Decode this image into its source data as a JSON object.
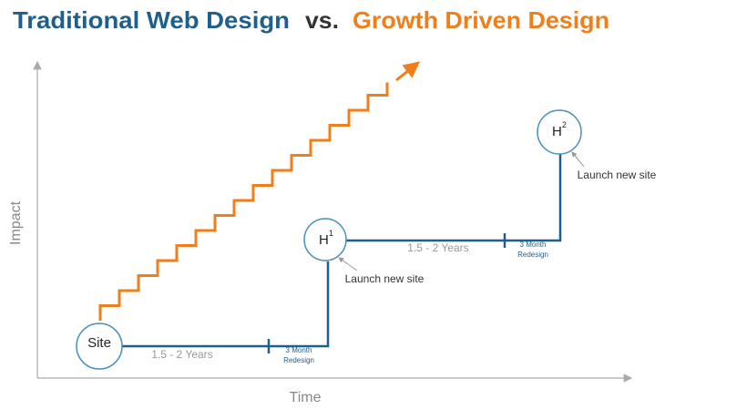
{
  "title": {
    "left": "Traditional Web Design",
    "vs": "vs.",
    "right": "Growth Driven Design"
  },
  "axes": {
    "x": "Time",
    "y": "Impact"
  },
  "nodes": [
    {
      "label": "Site"
    },
    {
      "label": "H",
      "sup": "1"
    },
    {
      "label": "H",
      "sup": "2"
    }
  ],
  "segments": [
    {
      "duration": "1.5 - 2 Years",
      "redesign": [
        "3 Month",
        "Redesign"
      ]
    },
    {
      "duration": "1.5 - 2 Years",
      "redesign": [
        "3 Month",
        "Redesign"
      ]
    }
  ],
  "annotations": [
    "Launch new site",
    "Launch new site"
  ]
}
